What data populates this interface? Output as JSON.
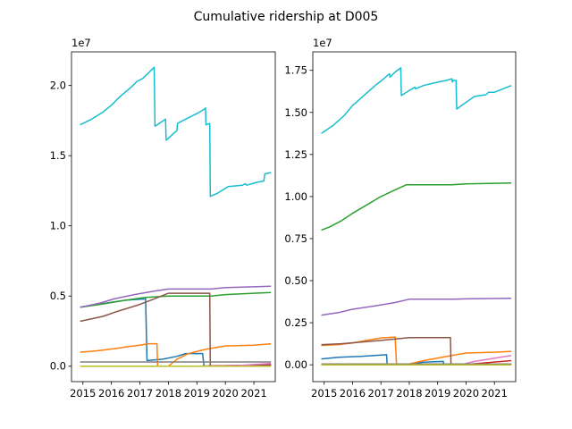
{
  "title": "Cumulative ridership at D005",
  "colors": {
    "background": "#ffffff",
    "axes": "#000000",
    "series_palette": [
      "#1f77b4",
      "#ff7f0e",
      "#2ca02c",
      "#d62728",
      "#9467bd",
      "#8c564b",
      "#e377c2",
      "#7f7f7f",
      "#bcbd22",
      "#17becf"
    ]
  },
  "chart_data": [
    {
      "type": "line",
      "title": "",
      "xlabel": "",
      "ylabel": "",
      "y_offset_label": "1e7",
      "xlim": [
        2014.6,
        2021.75
      ],
      "ylim": [
        -0.11,
        2.24
      ],
      "x_ticks": [
        2015,
        2016,
        2017,
        2018,
        2019,
        2020,
        2021
      ],
      "x_tick_labels": [
        "2015",
        "2016",
        "2017",
        "2018",
        "2019",
        "2020",
        "2021"
      ],
      "y_ticks": [
        0.0,
        0.5,
        1.0,
        1.5,
        2.0
      ],
      "y_tick_labels": [
        "0.0",
        "0.5",
        "1.0",
        "1.5",
        "2.0"
      ],
      "grid": false,
      "legend": "none",
      "series": [
        {
          "color": "#1f77b4",
          "points": [
            [
              2014.9,
              0.42
            ],
            [
              2015.5,
              0.44
            ],
            [
              2016.5,
              0.47
            ],
            [
              2017.2,
              0.48
            ],
            [
              2017.25,
              0.04
            ],
            [
              2017.8,
              0.05
            ],
            [
              2018.3,
              0.07
            ],
            [
              2018.6,
              0.09
            ],
            [
              2019.2,
              0.09
            ],
            [
              2019.25,
              0.0
            ],
            [
              2021.6,
              0.01
            ]
          ]
        },
        {
          "color": "#ff7f0e",
          "points": [
            [
              2014.9,
              0.1
            ],
            [
              2015.5,
              0.11
            ],
            [
              2016.3,
              0.13
            ],
            [
              2016.6,
              0.14
            ],
            [
              2017.0,
              0.15
            ],
            [
              2017.3,
              0.16
            ],
            [
              2017.6,
              0.16
            ],
            [
              2017.62,
              0.0
            ],
            [
              2018.0,
              0.0
            ],
            [
              2018.3,
              0.05
            ],
            [
              2018.7,
              0.09
            ],
            [
              2019.3,
              0.12
            ],
            [
              2020.0,
              0.145
            ],
            [
              2021.0,
              0.15
            ],
            [
              2021.6,
              0.16
            ]
          ]
        },
        {
          "color": "#2ca02c",
          "points": [
            [
              2014.9,
              0.42
            ],
            [
              2015.6,
              0.44
            ],
            [
              2016.5,
              0.47
            ],
            [
              2017.2,
              0.49
            ],
            [
              2018.0,
              0.5
            ],
            [
              2019.5,
              0.5
            ],
            [
              2020.0,
              0.51
            ],
            [
              2021.0,
              0.52
            ],
            [
              2021.6,
              0.525
            ]
          ]
        },
        {
          "color": "#d62728",
          "points": [
            [
              2014.9,
              0.0
            ],
            [
              2019.0,
              0.0
            ],
            [
              2021.6,
              0.01
            ]
          ]
        },
        {
          "color": "#9467bd",
          "points": [
            [
              2014.9,
              0.42
            ],
            [
              2015.6,
              0.45
            ],
            [
              2016.1,
              0.48
            ],
            [
              2016.8,
              0.51
            ],
            [
              2017.5,
              0.535
            ],
            [
              2018.0,
              0.55
            ],
            [
              2019.5,
              0.55
            ],
            [
              2020.0,
              0.56
            ],
            [
              2021.6,
              0.57
            ]
          ]
        },
        {
          "color": "#8c564b",
          "points": [
            [
              2014.9,
              0.32
            ],
            [
              2015.7,
              0.355
            ],
            [
              2016.2,
              0.39
            ],
            [
              2017.0,
              0.44
            ],
            [
              2017.5,
              0.48
            ],
            [
              2018.0,
              0.52
            ],
            [
              2019.45,
              0.52
            ],
            [
              2019.47,
              0.0
            ],
            [
              2021.6,
              0.005
            ]
          ]
        },
        {
          "color": "#e377c2",
          "points": [
            [
              2014.9,
              0.0
            ],
            [
              2019.8,
              0.0
            ],
            [
              2020.5,
              0.005
            ],
            [
              2021.6,
              0.02
            ]
          ]
        },
        {
          "color": "#7f7f7f",
          "points": [
            [
              2014.9,
              0.03
            ],
            [
              2021.6,
              0.03
            ]
          ]
        },
        {
          "color": "#bcbd22",
          "points": [
            [
              2014.9,
              0.0
            ],
            [
              2021.6,
              0.0
            ]
          ]
        },
        {
          "color": "#17becf",
          "points": [
            [
              2014.9,
              1.72
            ],
            [
              2015.3,
              1.76
            ],
            [
              2015.7,
              1.81
            ],
            [
              2016.0,
              1.86
            ],
            [
              2016.3,
              1.92
            ],
            [
              2016.7,
              1.99
            ],
            [
              2016.9,
              2.03
            ],
            [
              2017.1,
              2.05
            ],
            [
              2017.3,
              2.09
            ],
            [
              2017.5,
              2.13
            ],
            [
              2017.53,
              1.71
            ],
            [
              2017.9,
              1.76
            ],
            [
              2017.92,
              1.61
            ],
            [
              2018.3,
              1.68
            ],
            [
              2018.32,
              1.73
            ],
            [
              2018.7,
              1.77
            ],
            [
              2019.0,
              1.8
            ],
            [
              2019.25,
              1.83
            ],
            [
              2019.3,
              1.84
            ],
            [
              2019.32,
              1.72
            ],
            [
              2019.45,
              1.73
            ],
            [
              2019.47,
              1.21
            ],
            [
              2019.7,
              1.23
            ],
            [
              2020.1,
              1.28
            ],
            [
              2020.6,
              1.29
            ],
            [
              2020.7,
              1.3
            ],
            [
              2020.75,
              1.29
            ],
            [
              2021.1,
              1.31
            ],
            [
              2021.35,
              1.32
            ],
            [
              2021.38,
              1.37
            ],
            [
              2021.6,
              1.38
            ]
          ]
        }
      ]
    },
    {
      "type": "line",
      "title": "",
      "xlabel": "",
      "ylabel": "",
      "y_offset_label": "1e7",
      "xlim": [
        2014.6,
        2021.75
      ],
      "ylim": [
        -0.1,
        1.86
      ],
      "x_ticks": [
        2015,
        2016,
        2017,
        2018,
        2019,
        2020,
        2021
      ],
      "x_tick_labels": [
        "2015",
        "2016",
        "2017",
        "2018",
        "2019",
        "2020",
        "2021"
      ],
      "y_ticks": [
        0.0,
        0.25,
        0.5,
        0.75,
        1.0,
        1.25,
        1.5,
        1.75
      ],
      "y_tick_labels": [
        "0.00",
        "0.25",
        "0.50",
        "0.75",
        "1.00",
        "1.25",
        "1.50",
        "1.75"
      ],
      "grid": false,
      "legend": "none",
      "series": [
        {
          "color": "#1f77b4",
          "points": [
            [
              2014.9,
              0.035
            ],
            [
              2015.5,
              0.045
            ],
            [
              2016.3,
              0.05
            ],
            [
              2017.2,
              0.06
            ],
            [
              2017.22,
              0.0
            ],
            [
              2018.0,
              0.005
            ],
            [
              2018.5,
              0.015
            ],
            [
              2019.2,
              0.02
            ],
            [
              2019.22,
              0.0
            ],
            [
              2021.6,
              0.005
            ]
          ]
        },
        {
          "color": "#ff7f0e",
          "points": [
            [
              2014.9,
              0.115
            ],
            [
              2015.5,
              0.12
            ],
            [
              2016.0,
              0.13
            ],
            [
              2016.5,
              0.145
            ],
            [
              2017.0,
              0.16
            ],
            [
              2017.5,
              0.165
            ],
            [
              2017.55,
              0.0
            ],
            [
              2018.0,
              0.005
            ],
            [
              2018.5,
              0.025
            ],
            [
              2019.0,
              0.04
            ],
            [
              2019.5,
              0.055
            ],
            [
              2020.0,
              0.07
            ],
            [
              2021.0,
              0.075
            ],
            [
              2021.6,
              0.08
            ]
          ]
        },
        {
          "color": "#2ca02c",
          "points": [
            [
              2014.9,
              0.8
            ],
            [
              2015.2,
              0.82
            ],
            [
              2015.6,
              0.855
            ],
            [
              2016.0,
              0.9
            ],
            [
              2016.5,
              0.95
            ],
            [
              2017.0,
              1.0
            ],
            [
              2017.5,
              1.04
            ],
            [
              2017.9,
              1.07
            ],
            [
              2018.2,
              1.07
            ],
            [
              2019.5,
              1.07
            ],
            [
              2020.0,
              1.075
            ],
            [
              2021.6,
              1.08
            ]
          ]
        },
        {
          "color": "#d62728",
          "points": [
            [
              2014.9,
              0.0
            ],
            [
              2019.6,
              0.0
            ],
            [
              2020.2,
              0.005
            ],
            [
              2021.6,
              0.025
            ]
          ]
        },
        {
          "color": "#9467bd",
          "points": [
            [
              2014.9,
              0.295
            ],
            [
              2015.5,
              0.31
            ],
            [
              2016.0,
              0.33
            ],
            [
              2016.8,
              0.35
            ],
            [
              2017.5,
              0.37
            ],
            [
              2018.0,
              0.39
            ],
            [
              2019.5,
              0.39
            ],
            [
              2020.0,
              0.392
            ],
            [
              2021.6,
              0.395
            ]
          ]
        },
        {
          "color": "#8c564b",
          "points": [
            [
              2014.9,
              0.12
            ],
            [
              2015.6,
              0.125
            ],
            [
              2016.3,
              0.135
            ],
            [
              2017.0,
              0.145
            ],
            [
              2017.6,
              0.155
            ],
            [
              2018.0,
              0.162
            ],
            [
              2019.45,
              0.162
            ],
            [
              2019.47,
              0.0
            ],
            [
              2021.6,
              0.005
            ]
          ]
        },
        {
          "color": "#e377c2",
          "points": [
            [
              2014.9,
              0.0
            ],
            [
              2019.8,
              0.0
            ],
            [
              2020.3,
              0.02
            ],
            [
              2021.6,
              0.055
            ]
          ]
        },
        {
          "color": "#7f7f7f",
          "points": [
            [
              2014.9,
              0.005
            ],
            [
              2021.6,
              0.005
            ]
          ]
        },
        {
          "color": "#bcbd22",
          "points": [
            [
              2014.9,
              0.0
            ],
            [
              2021.6,
              0.0
            ]
          ]
        },
        {
          "color": "#17becf",
          "points": [
            [
              2014.9,
              1.375
            ],
            [
              2015.3,
              1.42
            ],
            [
              2015.7,
              1.48
            ],
            [
              2016.0,
              1.54
            ],
            [
              2016.4,
              1.6
            ],
            [
              2016.8,
              1.66
            ],
            [
              2017.1,
              1.7
            ],
            [
              2017.3,
              1.73
            ],
            [
              2017.32,
              1.71
            ],
            [
              2017.5,
              1.74
            ],
            [
              2017.7,
              1.765
            ],
            [
              2017.72,
              1.6
            ],
            [
              2018.0,
              1.63
            ],
            [
              2018.2,
              1.65
            ],
            [
              2018.22,
              1.64
            ],
            [
              2018.5,
              1.66
            ],
            [
              2019.0,
              1.68
            ],
            [
              2019.3,
              1.69
            ],
            [
              2019.5,
              1.7
            ],
            [
              2019.52,
              1.68
            ],
            [
              2019.55,
              1.69
            ],
            [
              2019.65,
              1.69
            ],
            [
              2019.67,
              1.52
            ],
            [
              2020.0,
              1.56
            ],
            [
              2020.3,
              1.595
            ],
            [
              2020.7,
              1.605
            ],
            [
              2020.8,
              1.62
            ],
            [
              2021.0,
              1.62
            ],
            [
              2021.6,
              1.66
            ]
          ]
        }
      ]
    }
  ]
}
